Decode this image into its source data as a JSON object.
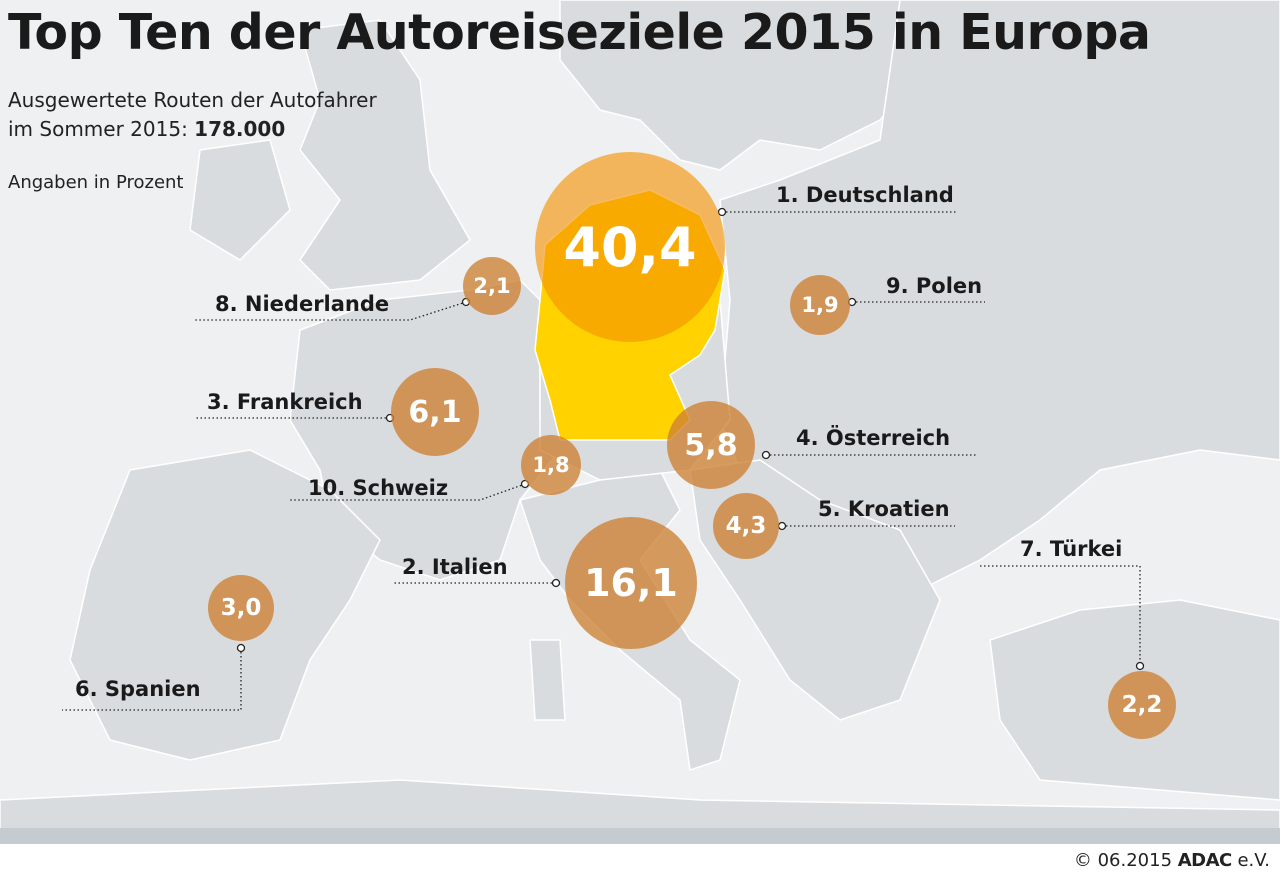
{
  "title": "Top Ten der Autoreiseziele 2015 in Europa",
  "subtitle_line1": "Ausgewertete Routen der Autofahrer",
  "subtitle_line2_prefix": "im Sommer 2015: ",
  "subtitle_total": "178.000",
  "unit_note": "Angaben in Prozent",
  "colors": {
    "sea": "#eef0f2",
    "land": "#d9dcdf",
    "germany": "#ffd200",
    "bubble": "#cd8032",
    "bubble_highlight": "#f39200"
  },
  "destinations": [
    {
      "rank_label": "1. Deutschland",
      "value": "40,4"
    },
    {
      "rank_label": "2. Italien",
      "value": "16,1"
    },
    {
      "rank_label": "3. Frankreich",
      "value": "6,1"
    },
    {
      "rank_label": "4. Österreich",
      "value": "5,8"
    },
    {
      "rank_label": "5. Kroatien",
      "value": "4,3"
    },
    {
      "rank_label": "6. Spanien",
      "value": "3,0"
    },
    {
      "rank_label": "7. Türkei",
      "value": "2,2"
    },
    {
      "rank_label": "8. Niederlande",
      "value": "2,1"
    },
    {
      "rank_label": "9. Polen",
      "value": "1,9"
    },
    {
      "rank_label": "10. Schweiz",
      "value": "1,8"
    }
  ],
  "footer": {
    "copyright": "© 06.2015",
    "brand": "ADAC",
    "suffix": " e.V."
  }
}
